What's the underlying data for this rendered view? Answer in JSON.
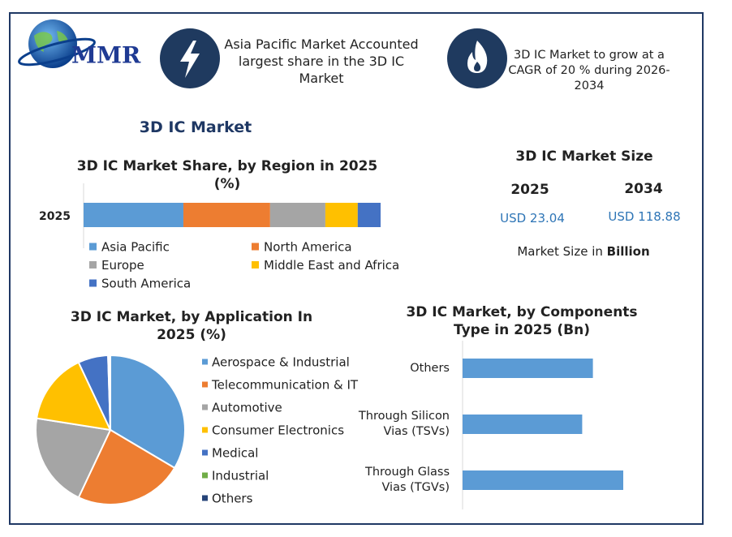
{
  "header": {
    "logo": "MMR",
    "title": "3D IC Market",
    "highlights": [
      "Asia Pacific Market Accounted largest share in the 3D IC Market",
      "3D IC Market to grow at a CAGR of  20 % during 2026-2034"
    ]
  },
  "market_size": {
    "title": "3D IC Market Size",
    "columns": [
      {
        "year": "2025",
        "value": "USD 23.04"
      },
      {
        "year": "2034",
        "value": "USD 118.88"
      }
    ],
    "note": "Market Size in ",
    "note_unit": "Billion"
  },
  "chart_data": [
    {
      "type": "stacked_bar",
      "title": "3D IC Market Share, by Region in 2025 (%)",
      "categories": [
        "2025"
      ],
      "xlim": [
        0,
        100
      ],
      "series": [
        {
          "name": "Asia Pacific",
          "color": "#5b9bd5",
          "values": [
            33.6
          ]
        },
        {
          "name": "North America",
          "color": "#ed7d31",
          "values": [
            29.2
          ]
        },
        {
          "name": "Europe",
          "color": "#a5a5a5",
          "values": [
            18.6
          ]
        },
        {
          "name": "Middle East and Africa",
          "color": "#ffc000",
          "values": [
            10.9
          ]
        },
        {
          "name": "South America",
          "color": "#4472c4",
          "values": [
            7.7
          ]
        }
      ]
    },
    {
      "type": "pie",
      "title": "3D IC Market, by Application In 2025 (%)",
      "categories": [
        "Aerospace & Industrial",
        "Telecommunication & IT",
        "Automotive",
        "Consumer Electronics",
        "Medical",
        "Industrial",
        "Others"
      ],
      "values": [
        33.5,
        23.5,
        20.5,
        15.5,
        6.5,
        0.3,
        0.2
      ],
      "colors": [
        "#5b9bd5",
        "#ed7d31",
        "#a5a5a5",
        "#ffc000",
        "#4472c4",
        "#70ad47",
        "#264478"
      ]
    },
    {
      "type": "hbar",
      "title": "3D IC Market, by Components Type in 2025 (Bn)",
      "categories": [
        "Others",
        "Through Silicon Vias (TSVs)",
        "Through Glass Vias (TGVs)"
      ],
      "values": [
        7.3,
        6.7,
        9.0
      ],
      "color": "#5b9bd5",
      "xlim": [
        0,
        10
      ]
    }
  ]
}
